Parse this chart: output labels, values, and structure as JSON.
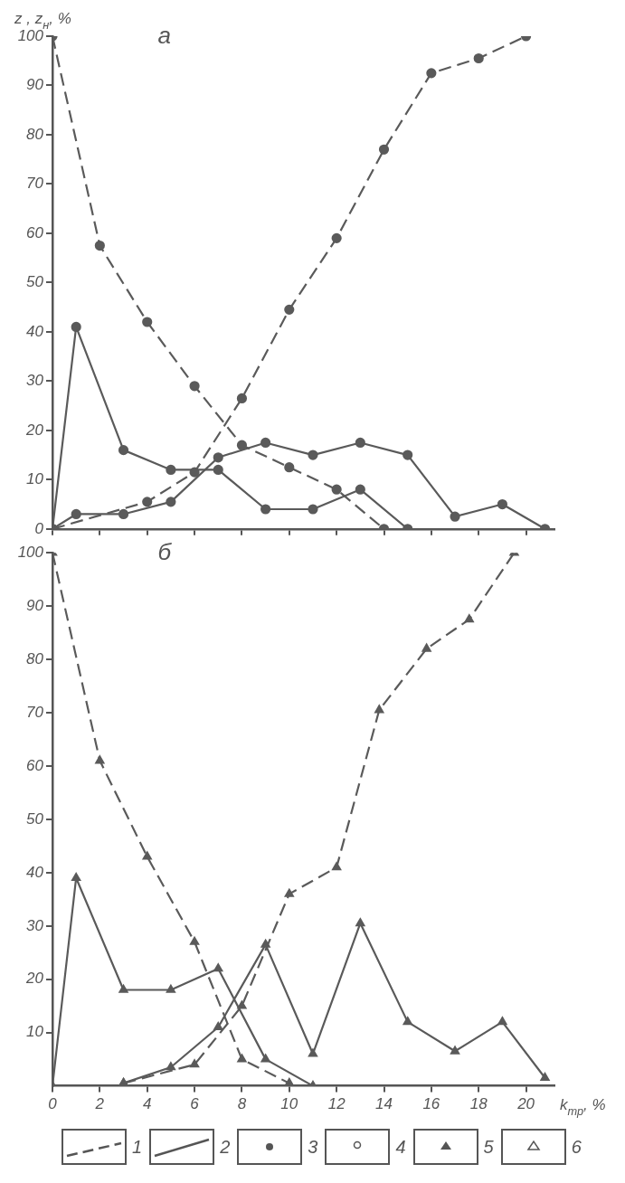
{
  "chart_data": [
    {
      "type": "line",
      "title": "а",
      "ylabel": "z , z$_{н}$, %",
      "xlim": [
        0,
        21.2
      ],
      "ylim": [
        0,
        100
      ],
      "xticks": [
        0,
        2,
        4,
        6,
        8,
        10,
        12,
        14,
        16,
        18,
        20
      ],
      "yticks": [
        0,
        10,
        20,
        30,
        40,
        50,
        60,
        70,
        80,
        90,
        100
      ],
      "tick_labels": "y",
      "grid": false,
      "legend": false,
      "series": [
        {
          "color": "#5a5a5a",
          "line_style": "dashed",
          "marker": "circle",
          "x": [
            0,
            2,
            4,
            6,
            8,
            10,
            12,
            14
          ],
          "values": [
            100,
            57.5,
            42,
            29,
            17,
            12.5,
            8,
            0
          ]
        },
        {
          "color": "#5a5a5a",
          "line_style": "solid",
          "marker": "circle",
          "x": [
            0,
            1,
            3,
            5,
            7,
            9,
            11,
            13,
            15
          ],
          "values": [
            0,
            41,
            16,
            12,
            12,
            4,
            4,
            8,
            0
          ]
        },
        {
          "color": "#5a5a5a",
          "line_style": "dashed",
          "marker": "circle",
          "x": [
            0,
            4,
            6,
            8,
            10,
            12,
            14,
            16,
            18,
            20
          ],
          "values": [
            0,
            5.5,
            11.5,
            26.5,
            44.5,
            59,
            77,
            92.5,
            95.5,
            100
          ]
        },
        {
          "color": "#5a5a5a",
          "line_style": "solid",
          "marker": "circle",
          "x": [
            0,
            1,
            3,
            5,
            7,
            9,
            11,
            13,
            15,
            17,
            19,
            20.8
          ],
          "values": [
            0,
            3,
            3,
            5.5,
            14.5,
            17.5,
            15,
            17.5,
            15,
            2.5,
            5,
            0
          ]
        }
      ]
    },
    {
      "type": "line",
      "title": "б",
      "xlabel": "k$_{тр}$, %",
      "xlim": [
        0,
        21.2
      ],
      "ylim": [
        0,
        100
      ],
      "xticks": [
        0,
        2,
        4,
        6,
        8,
        10,
        12,
        14,
        16,
        18,
        20
      ],
      "yticks": [
        10,
        20,
        30,
        40,
        50,
        60,
        70,
        80,
        90,
        100
      ],
      "grid": false,
      "legend": false,
      "annotations": [
        "1",
        "2",
        "3",
        "4",
        "5",
        "6"
      ],
      "series": [
        {
          "color": "#5a5a5a",
          "line_style": "dashed",
          "marker": "triangle",
          "x": [
            0,
            2,
            4,
            6,
            8,
            10
          ],
          "values": [
            100,
            61,
            43,
            27,
            5,
            0.5
          ]
        },
        {
          "color": "#5a5a5a",
          "line_style": "solid",
          "marker": "triangle",
          "x": [
            0,
            1,
            3,
            5,
            7,
            9,
            11
          ],
          "values": [
            0,
            39,
            18,
            18,
            22,
            5,
            0
          ]
        },
        {
          "color": "#5a5a5a",
          "line_style": "dashed",
          "marker": "triangle",
          "x": [
            3,
            6,
            8,
            10,
            12,
            13.8,
            15.8,
            17.6,
            19.5
          ],
          "values": [
            0.5,
            4,
            15,
            36,
            41,
            70.5,
            82,
            87.5,
            100
          ]
        },
        {
          "color": "#5a5a5a",
          "line_style": "solid",
          "marker": "triangle",
          "x": [
            3,
            5,
            7,
            9,
            11,
            13,
            15,
            17,
            19,
            20.8
          ],
          "values": [
            0.5,
            3.5,
            11,
            26.5,
            6,
            30.5,
            12,
            6.5,
            12,
            1.5
          ]
        }
      ]
    }
  ]
}
